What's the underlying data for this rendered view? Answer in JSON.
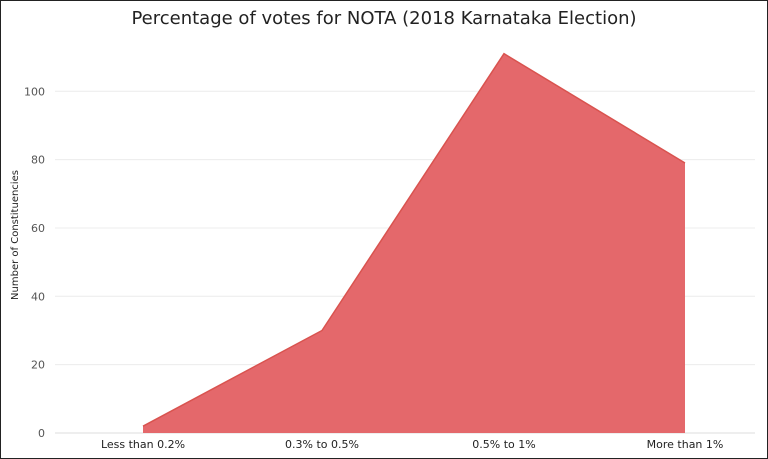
{
  "chart_data": {
    "type": "area",
    "title": "Percentage of votes for NOTA (2018 Karnataka Election)",
    "xlabel": "",
    "ylabel": "Number of Constituencies",
    "categories": [
      "Less than 0.2%",
      "0.3% to 0.5%",
      "0.5% to 1%",
      "More than 1%"
    ],
    "values": [
      2,
      30,
      111,
      79
    ],
    "ylim": [
      0,
      115
    ],
    "yticks": [
      0,
      20,
      40,
      60,
      80,
      100
    ],
    "grid": true,
    "fill_color": "#e4686b",
    "stroke_color": "#d9534f"
  }
}
